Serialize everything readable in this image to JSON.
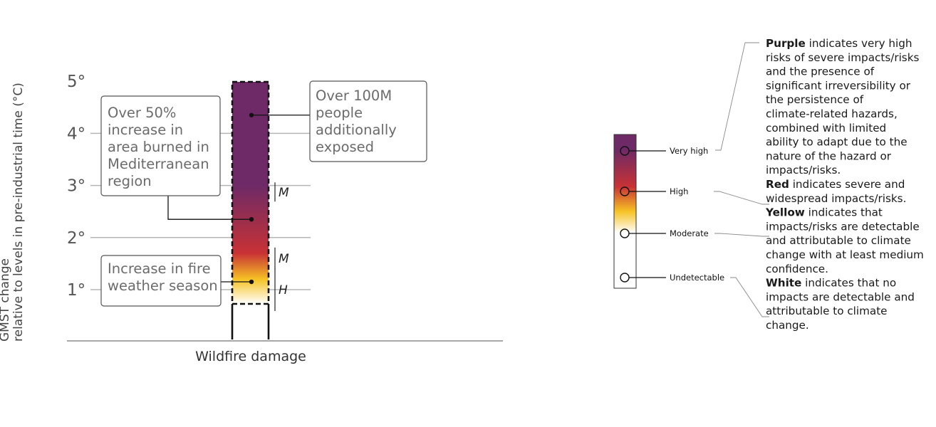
{
  "chart_data": {
    "type": "burning-ember",
    "ylabel_line1": "GMST change",
    "ylabel_line2": "relative to levels in pre-industrial time (°C)",
    "xlabel": "Wildfire damage",
    "y_ticks": [
      "1°",
      "2°",
      "3°",
      "4°",
      "5°"
    ],
    "y_tick_values": [
      1,
      2,
      3,
      4,
      5
    ],
    "ylim": [
      0,
      5
    ],
    "ember": {
      "stops": [
        {
          "t": 0.7,
          "level": "undetectable"
        },
        {
          "t": 1.2,
          "level": "moderate"
        },
        {
          "t": 1.7,
          "level": "high"
        },
        {
          "t": 3.0,
          "level": "very-high"
        }
      ]
    },
    "transitions": [
      {
        "from": 0.7,
        "to": 1.3,
        "confidence": "H"
      },
      {
        "from": 1.5,
        "to": 1.7,
        "confidence": "M"
      },
      {
        "from": 2.8,
        "to": 2.95,
        "confidence": "M"
      }
    ],
    "annotations": [
      {
        "at": 4.35,
        "side": "right",
        "lines": [
          "Over 100M",
          "people",
          "additionally",
          "exposed"
        ]
      },
      {
        "at": 2.35,
        "side": "left",
        "lines": [
          "Over 50%",
          "increase in",
          "area burned in",
          "Mediterranean",
          "region"
        ]
      },
      {
        "at": 1.15,
        "side": "left",
        "lines": [
          "Increase in fire",
          "weather season"
        ]
      }
    ]
  },
  "legend": {
    "levels": [
      {
        "name": "very-high",
        "label": "Very high",
        "color": "#6e2a66"
      },
      {
        "name": "high",
        "label": "High",
        "color": "#c83235"
      },
      {
        "name": "moderate",
        "label": "Moderate",
        "color": "#f6c224"
      },
      {
        "name": "undetectable",
        "label": "Undetectable",
        "color": "#ffffff"
      }
    ],
    "descriptions": [
      {
        "bold": "Purple",
        "lines": [
          " indicates very high",
          "risks of severe impacts/risks",
          "and the presence of",
          "significant irreversibility or",
          "the persistence of",
          "climate-related hazards,",
          "combined with limited",
          "ability to adapt due to the",
          "nature of the hazard or",
          "impacts/risks."
        ]
      },
      {
        "bold": "Red",
        "lines": [
          " indicates severe and",
          "widespread impacts/risks."
        ]
      },
      {
        "bold": "Yellow",
        "lines": [
          " indicates that",
          "impacts/risks are detectable",
          "and attributable to climate",
          "change with at least medium",
          "confidence."
        ]
      },
      {
        "bold": "White",
        "lines": [
          " indicates that no",
          "impacts are detectable and",
          "attributable to climate",
          "change."
        ]
      }
    ]
  }
}
